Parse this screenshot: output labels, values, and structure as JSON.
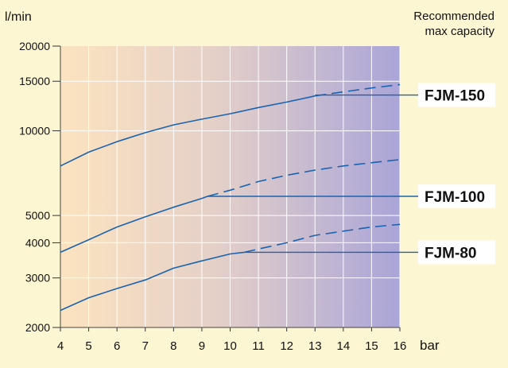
{
  "chart_data": {
    "type": "line",
    "ylabel": "l/min",
    "xlabel": "bar",
    "annotation": [
      "Recommended",
      "max capacity"
    ],
    "y_scale": "log",
    "xlim": [
      4,
      16
    ],
    "ylim": [
      2000,
      20000
    ],
    "grid": true,
    "x_ticks": [
      4,
      5,
      6,
      7,
      8,
      9,
      10,
      11,
      12,
      13,
      14,
      15,
      16
    ],
    "y_ticks": [
      2000,
      3000,
      4000,
      5000,
      10000,
      15000,
      20000
    ],
    "y_tick_labels": [
      "2000",
      "3000",
      "4000",
      "5000",
      "10000",
      "15000",
      "20000"
    ],
    "series": [
      {
        "name": "FJM-150",
        "recommended_max_capacity": 13400,
        "x": [
          4,
          5,
          6,
          7,
          8,
          9,
          10,
          11,
          12,
          13
        ],
        "y": [
          7500,
          8400,
          9150,
          9850,
          10500,
          11000,
          11500,
          12100,
          12650,
          13300
        ],
        "dashed_x": [
          13,
          14,
          15,
          16
        ],
        "dashed_y": [
          13300,
          13750,
          14200,
          14600
        ]
      },
      {
        "name": "FJM-100",
        "recommended_max_capacity": 5850,
        "x": [
          4,
          5,
          6,
          7,
          8,
          9,
          9.2
        ],
        "y": [
          3700,
          4100,
          4550,
          4950,
          5350,
          5750,
          5850
        ],
        "dashed_x": [
          9.2,
          10,
          11,
          12,
          13,
          14,
          15,
          16
        ],
        "dashed_y": [
          5850,
          6150,
          6600,
          6950,
          7250,
          7500,
          7700,
          7900
        ]
      },
      {
        "name": "FJM-80",
        "recommended_max_capacity": 3700,
        "x": [
          4,
          5,
          6,
          7,
          8,
          9,
          10,
          10.5
        ],
        "y": [
          2300,
          2550,
          2750,
          2950,
          3250,
          3450,
          3650,
          3700
        ],
        "dashed_x": [
          10.5,
          11,
          12,
          13,
          14,
          15,
          16
        ],
        "dashed_y": [
          3700,
          3800,
          4000,
          4250,
          4400,
          4550,
          4650
        ]
      }
    ]
  }
}
